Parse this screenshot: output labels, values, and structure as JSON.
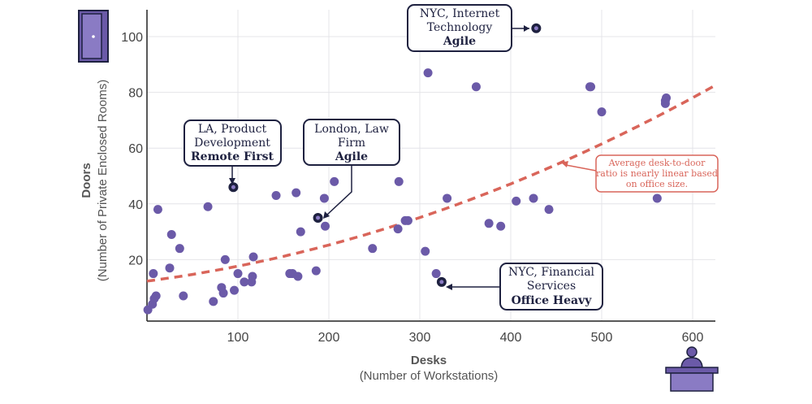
{
  "chart_data": {
    "type": "scatter",
    "xlabel": "Desks",
    "xlabel_sub": "(Number of Workstations)",
    "ylabel": "Doors",
    "ylabel_sub": "(Number of Private Enclosed Rooms)",
    "xlim": [
      0,
      625
    ],
    "ylim": [
      0,
      110
    ],
    "xticks": [
      100,
      200,
      300,
      400,
      500,
      600
    ],
    "yticks": [
      20,
      40,
      60,
      80,
      100
    ],
    "grid": true,
    "point_color": "#6b5aa8",
    "highlight_color": "#1e2140",
    "trend_color": "#d9655a",
    "points": [
      [
        1,
        2
      ],
      [
        6,
        4
      ],
      [
        8,
        6
      ],
      [
        10,
        7
      ],
      [
        7,
        15
      ],
      [
        12,
        38
      ],
      [
        25,
        17
      ],
      [
        27,
        29
      ],
      [
        36,
        24
      ],
      [
        40,
        7
      ],
      [
        67,
        39
      ],
      [
        73,
        5
      ],
      [
        82,
        10
      ],
      [
        84,
        8
      ],
      [
        86,
        20
      ],
      [
        96,
        9
      ],
      [
        100,
        15
      ],
      [
        107,
        12
      ],
      [
        115,
        12
      ],
      [
        116,
        14
      ],
      [
        117,
        21
      ],
      [
        142,
        43
      ],
      [
        157,
        15
      ],
      [
        160,
        15
      ],
      [
        166,
        14
      ],
      [
        169,
        30
      ],
      [
        164,
        44
      ],
      [
        186,
        16
      ],
      [
        195,
        42
      ],
      [
        196,
        32
      ],
      [
        206,
        48
      ],
      [
        248,
        24
      ],
      [
        276,
        31
      ],
      [
        277,
        48
      ],
      [
        284,
        34
      ],
      [
        287,
        34
      ],
      [
        306,
        23
      ],
      [
        309,
        87
      ],
      [
        318,
        15
      ],
      [
        330,
        42
      ],
      [
        362,
        82
      ],
      [
        376,
        33
      ],
      [
        389,
        32
      ],
      [
        406,
        41
      ],
      [
        425,
        42
      ],
      [
        442,
        38
      ],
      [
        487,
        82
      ],
      [
        488,
        82
      ],
      [
        500,
        73
      ],
      [
        561,
        42
      ],
      [
        570,
        76
      ],
      [
        570,
        77
      ],
      [
        571,
        78
      ]
    ],
    "highlights": [
      {
        "x": 428,
        "y": 103,
        "line1": "NYC, Internet",
        "line2": "Technology",
        "bold": "Agile"
      },
      {
        "x": 95,
        "y": 46,
        "line1": "LA, Product",
        "line2": "Development",
        "bold": "Remote First"
      },
      {
        "x": 188,
        "y": 35,
        "line1": "London, Law",
        "line2": "Firm",
        "bold": "Agile"
      },
      {
        "x": 324,
        "y": 12,
        "line1": "NYC, Financial",
        "line2": "Services",
        "bold": "Office Heavy"
      }
    ],
    "trend": {
      "type": "quadratic",
      "a": 0.000112,
      "b": 0.0424,
      "c": 12.3,
      "x_start": 0,
      "x_end": 625
    },
    "annotation": "Average desk-to-door ratio is nearly linear based on office size.",
    "annotation_lines": [
      "Average desk-to-door",
      "ratio is nearly linear based",
      "on office size."
    ],
    "icons": [
      "door-icon",
      "desk-worker-icon"
    ]
  }
}
